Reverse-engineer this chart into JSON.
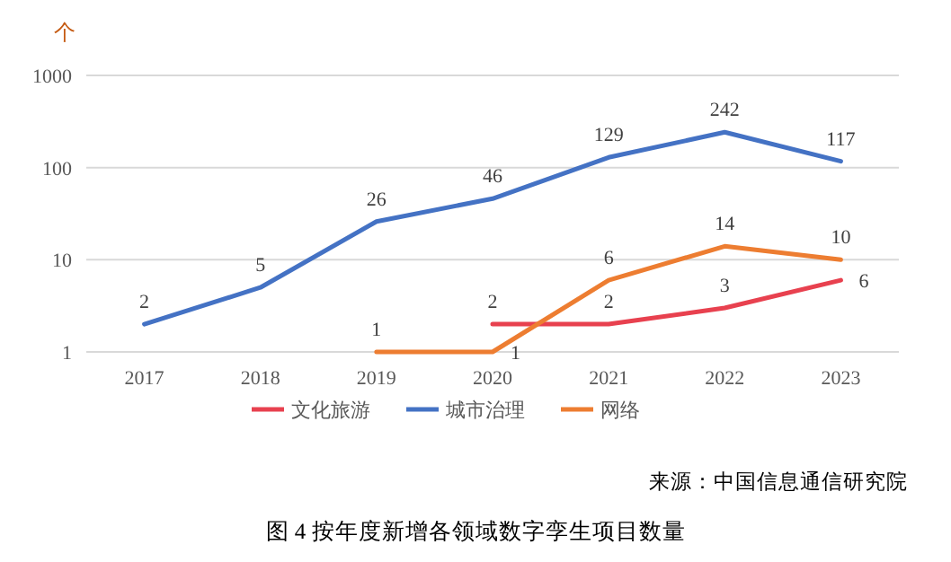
{
  "chart_data": {
    "type": "line",
    "ylabel": "个",
    "categories": [
      "2017",
      "2018",
      "2019",
      "2020",
      "2021",
      "2022",
      "2023"
    ],
    "series": [
      {
        "name": "文化旅游",
        "color": "#e8414f",
        "values": [
          null,
          null,
          null,
          2,
          2,
          3,
          6
        ]
      },
      {
        "name": "城市治理",
        "color": "#4472c4",
        "values": [
          2,
          5,
          26,
          46,
          129,
          242,
          117
        ]
      },
      {
        "name": "网络",
        "color": "#ed7d31",
        "values": [
          null,
          null,
          1,
          1,
          6,
          14,
          10
        ]
      }
    ],
    "log": true,
    "ylim": [
      1,
      1000
    ],
    "yticks": [
      1,
      10,
      100,
      1000
    ],
    "grid": "y",
    "legend": "bottom",
    "data_labels": true,
    "annotations": [
      "来源：中国信息通信研究院",
      "图 4 按年度新增各领域数字孪生项目数量"
    ]
  }
}
